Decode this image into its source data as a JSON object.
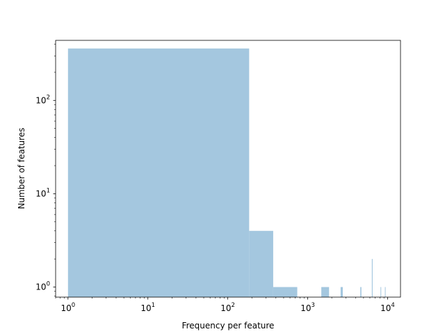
{
  "chart_data": {
    "type": "bar",
    "subtype": "histogram",
    "xlabel": "Frequency per feature",
    "ylabel": "Number of features",
    "xscale": "log",
    "yscale": "log",
    "xlim": [
      0.7,
      14500
    ],
    "ylim": [
      0.78,
      440
    ],
    "grid": false,
    "bar_color": "#a4c7df",
    "x_ticks": [
      {
        "value": 1,
        "base": "10",
        "exp": "0"
      },
      {
        "value": 10,
        "base": "10",
        "exp": "1"
      },
      {
        "value": 100,
        "base": "10",
        "exp": "2"
      },
      {
        "value": 1000,
        "base": "10",
        "exp": "3"
      },
      {
        "value": 10000,
        "base": "10",
        "exp": "4"
      }
    ],
    "y_ticks": [
      {
        "value": 1,
        "base": "10",
        "exp": "0"
      },
      {
        "value": 10,
        "base": "10",
        "exp": "1"
      },
      {
        "value": 100,
        "base": "10",
        "exp": "2"
      }
    ],
    "bins": [
      {
        "x0": 1,
        "x1": 185,
        "count": 360
      },
      {
        "x0": 185,
        "x1": 370,
        "count": 4
      },
      {
        "x0": 370,
        "x1": 740,
        "count": 1
      },
      {
        "x0": 1480,
        "x1": 1850,
        "count": 1
      },
      {
        "x0": 2580,
        "x1": 2750,
        "count": 1
      },
      {
        "x0": 4550,
        "x1": 4700,
        "count": 1
      },
      {
        "x0": 6350,
        "x1": 6500,
        "count": 2
      },
      {
        "x0": 8150,
        "x1": 8280,
        "count": 1
      },
      {
        "x0": 9250,
        "x1": 9380,
        "count": 1
      }
    ]
  }
}
